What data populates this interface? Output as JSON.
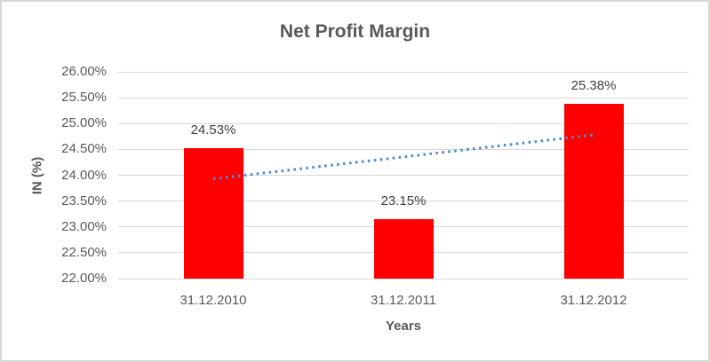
{
  "chart_data": {
    "type": "bar",
    "title": "Net Profit Margin",
    "xlabel": "Years",
    "ylabel": "IN (%)",
    "categories": [
      "31.12.2010",
      "31.12.2011",
      "31.12.2012"
    ],
    "values": [
      24.53,
      23.15,
      25.38
    ],
    "data_labels": [
      "24.53%",
      "23.15%",
      "25.38%"
    ],
    "ylim": [
      22,
      26
    ],
    "ytick_step": 0.5,
    "yticks": [
      {
        "label": "26.00%",
        "value": 26.0
      },
      {
        "label": "25.50%",
        "value": 25.5
      },
      {
        "label": "25.00%",
        "value": 25.0
      },
      {
        "label": "24.50%",
        "value": 24.5
      },
      {
        "label": "24.00%",
        "value": 24.0
      },
      {
        "label": "23.50%",
        "value": 23.5
      },
      {
        "label": "23.00%",
        "value": 23.0
      },
      {
        "label": "22.50%",
        "value": 22.5
      },
      {
        "label": "22.00%",
        "value": 22.0
      }
    ],
    "grid": true,
    "legend": "none",
    "bar_color": "#ff0000",
    "gridline_color": "#d9d9d9",
    "text_color": "#595959",
    "trendline": {
      "type": "linear",
      "style": "dotted",
      "color": "#4e8ad4",
      "values": [
        23.93,
        24.35,
        24.78
      ]
    }
  }
}
